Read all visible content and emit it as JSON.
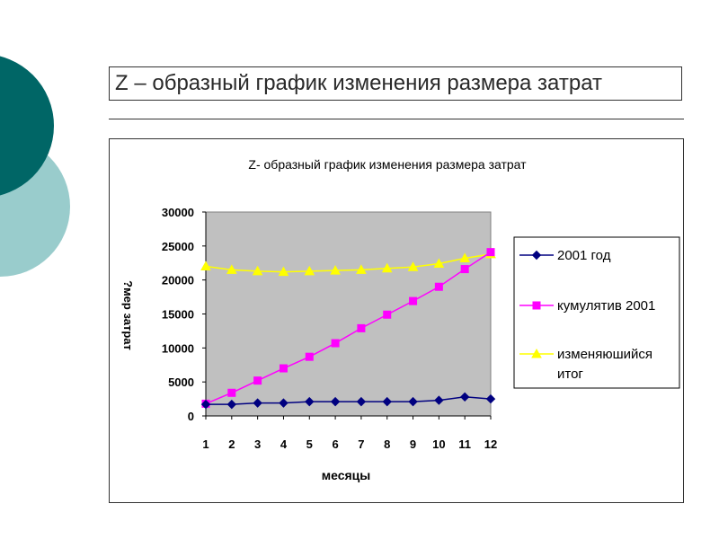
{
  "slide": {
    "title": "Z – образный график изменения размера затрат"
  },
  "colors": {
    "deco_dark": "#006666",
    "deco_light": "#99cccc",
    "plot_background": "#c0c0c0",
    "series_2001": "#000080",
    "series_cumulative": "#ff00ff",
    "series_moving_total": "#ffff00"
  },
  "chart_data": {
    "type": "line",
    "title": "Z- образный график изменения размера затрат",
    "xlabel": "месяцы",
    "ylabel": "?мер затрат",
    "ylim": [
      0,
      30000
    ],
    "yticks": [
      "0",
      "5000",
      "10000",
      "15000",
      "20000",
      "25000",
      "30000"
    ],
    "x": [
      "1",
      "2",
      "3",
      "4",
      "5",
      "6",
      "7",
      "8",
      "9",
      "10",
      "11",
      "12"
    ],
    "grid": false,
    "legend_position": "right",
    "series": [
      {
        "name": "2001 год",
        "marker": "diamond",
        "values": [
          1700,
          1700,
          1900,
          1900,
          2100,
          2100,
          2100,
          2100,
          2100,
          2300,
          2800,
          2500
        ]
      },
      {
        "name": "кумулятив 2001",
        "marker": "square",
        "values": [
          1800,
          3400,
          5200,
          7000,
          8700,
          10700,
          12900,
          14900,
          16900,
          19000,
          21600,
          24100
        ]
      },
      {
        "name": "изменяюшийся итог",
        "marker": "triangle",
        "values": [
          22000,
          21500,
          21300,
          21200,
          21300,
          21400,
          21500,
          21700,
          21900,
          22400,
          23200,
          23800
        ]
      }
    ]
  }
}
